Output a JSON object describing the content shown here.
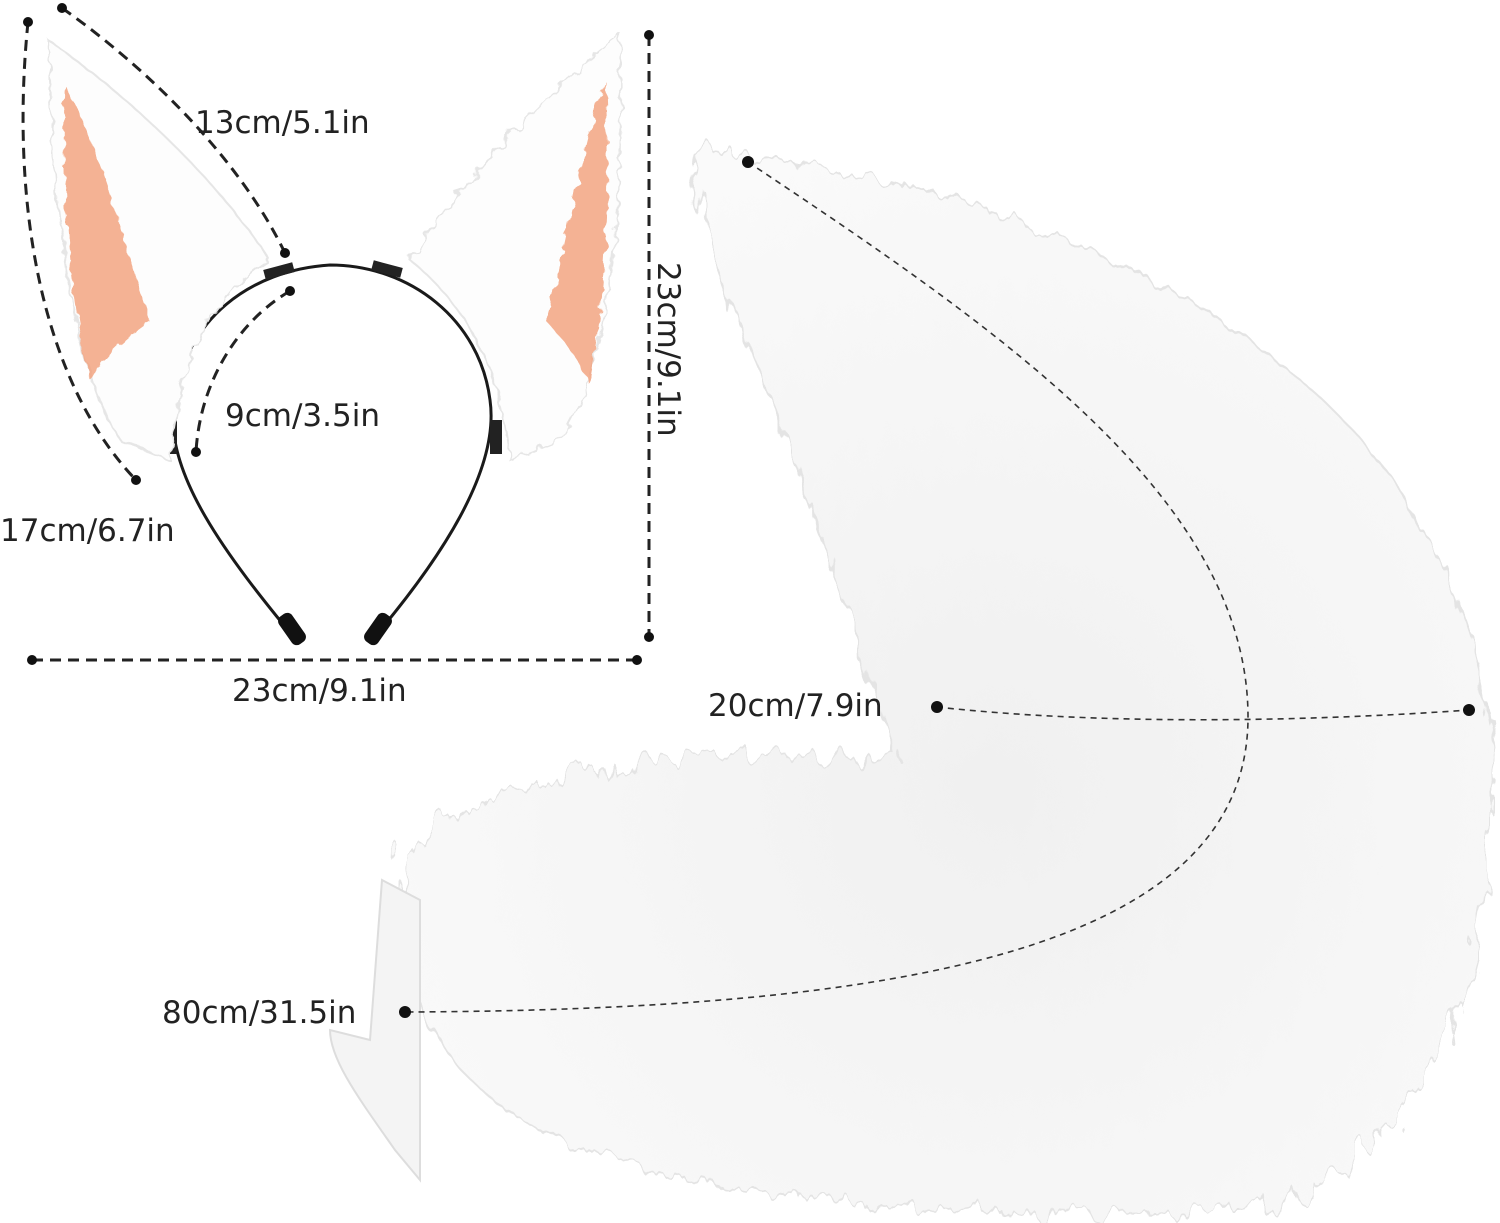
{
  "measurements": {
    "ear_edge": "13cm/5.1in",
    "ear_height": "17cm/6.7in",
    "ear_base": "9cm/3.5in",
    "headband_height": "23cm/9.1in",
    "headband_width": "23cm/9.1in",
    "tail_width": "20cm/7.9in",
    "tail_length": "80cm/31.5in"
  },
  "colors": {
    "fur": "#ffffff",
    "inner_ear": "#f3a07a",
    "headband": "#1a1a1a",
    "annotation": "#222222"
  }
}
